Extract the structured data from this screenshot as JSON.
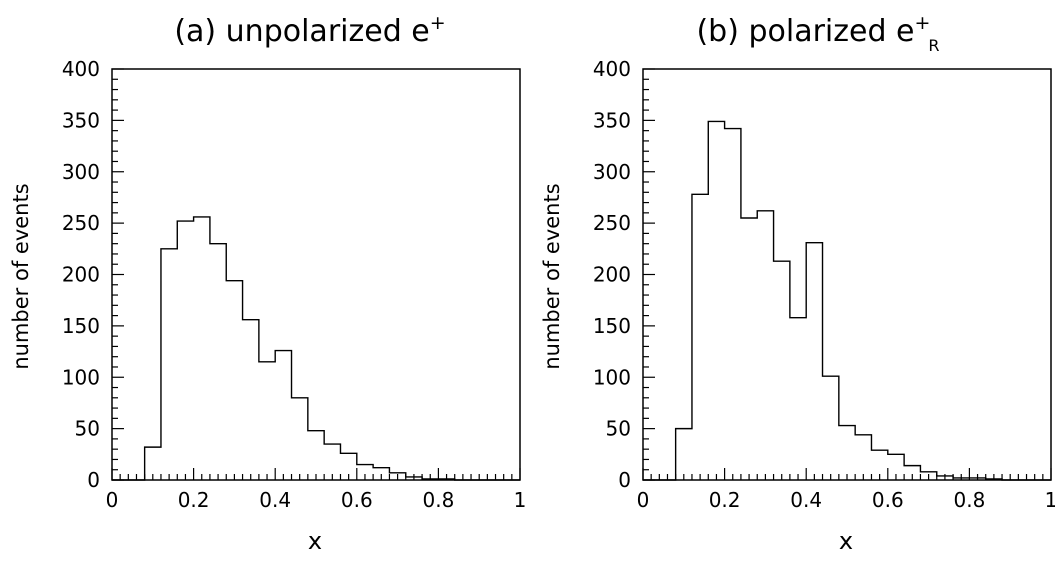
{
  "chart_data": [
    {
      "type": "histogram",
      "title": "(a) unpolarized e",
      "title_superscript": "+",
      "title_subscript": "",
      "xlabel": "x",
      "ylabel": "number of events",
      "xlim": [
        0,
        1
      ],
      "ylim": [
        0,
        400
      ],
      "xticks": [
        "0",
        "0.2",
        "0.4",
        "0.6",
        "0.8",
        "1"
      ],
      "yticks": [
        "0",
        "50",
        "100",
        "150",
        "200",
        "250",
        "300",
        "350",
        "400"
      ],
      "grid": false,
      "bin_width": 0.04,
      "bin_edges": [
        0.0,
        0.04,
        0.08,
        0.12,
        0.16,
        0.2,
        0.24,
        0.28,
        0.32,
        0.36,
        0.4,
        0.44,
        0.48,
        0.52,
        0.56,
        0.6,
        0.64,
        0.68,
        0.72,
        0.76,
        0.8,
        0.84,
        0.88,
        0.92,
        0.96,
        1.0
      ],
      "values": [
        0,
        0,
        32,
        225,
        252,
        256,
        230,
        194,
        156,
        115,
        126,
        80,
        48,
        35,
        26,
        15,
        12,
        7,
        3,
        1,
        1,
        0,
        0,
        0,
        0
      ]
    },
    {
      "type": "histogram",
      "title": "(b) polarized e",
      "title_superscript": "+",
      "title_subscript": "R",
      "xlabel": "x",
      "ylabel": "number of events",
      "xlim": [
        0,
        1
      ],
      "ylim": [
        0,
        400
      ],
      "xticks": [
        "0",
        "0.2",
        "0.4",
        "0.6",
        "0.8",
        "1"
      ],
      "yticks": [
        "0",
        "50",
        "100",
        "150",
        "200",
        "250",
        "300",
        "350",
        "400"
      ],
      "grid": false,
      "bin_width": 0.04,
      "bin_edges": [
        0.0,
        0.04,
        0.08,
        0.12,
        0.16,
        0.2,
        0.24,
        0.28,
        0.32,
        0.36,
        0.4,
        0.44,
        0.48,
        0.52,
        0.56,
        0.6,
        0.64,
        0.68,
        0.72,
        0.76,
        0.8,
        0.84,
        0.88,
        0.92,
        0.96,
        1.0
      ],
      "values": [
        0,
        0,
        50,
        278,
        349,
        342,
        255,
        262,
        213,
        158,
        231,
        101,
        53,
        44,
        29,
        25,
        14,
        8,
        4,
        2,
        2,
        1,
        0,
        0,
        0
      ]
    }
  ]
}
